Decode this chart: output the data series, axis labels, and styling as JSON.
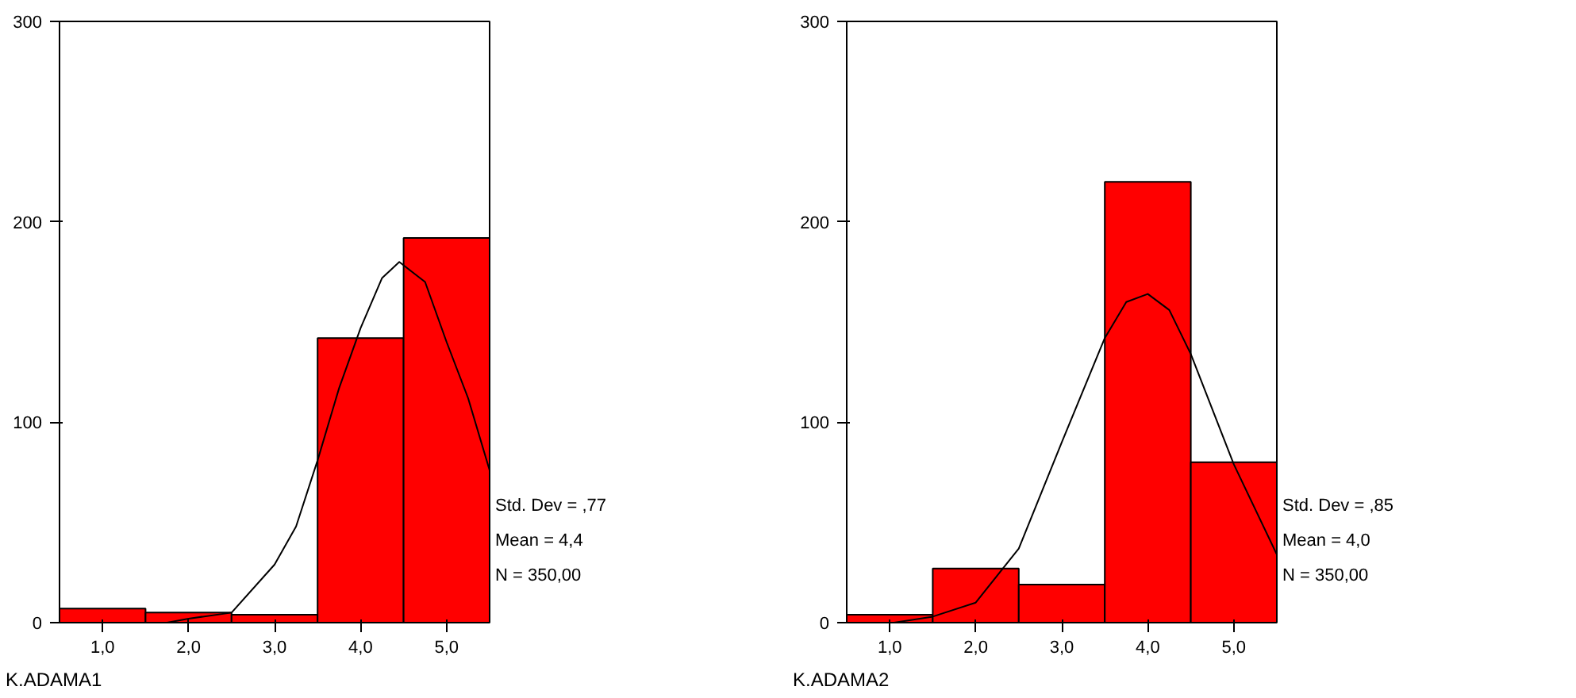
{
  "chart_data": [
    {
      "type": "histogram",
      "xlabel": "K.ADAMA1",
      "bins": [
        0.5,
        1.5,
        2.5,
        3.5,
        4.5,
        5.5
      ],
      "values": [
        7,
        5,
        4,
        142,
        192
      ],
      "color": "#ff0000",
      "series": [
        {
          "type": "line",
          "color": "#000000",
          "x": [
            1.75,
            2.0,
            2.5,
            3.0,
            3.25,
            3.5,
            3.75,
            4.0,
            4.25,
            4.45,
            4.75,
            5.0,
            5.25,
            5.5
          ],
          "values": [
            0,
            2,
            5,
            29,
            48,
            81,
            117,
            147,
            172,
            180,
            170,
            140,
            112,
            76
          ]
        }
      ],
      "xlim": [
        0.5,
        5.5
      ],
      "ylim": [
        0,
        300
      ],
      "xticks": [
        {
          "value": 1,
          "label": "1,0"
        },
        {
          "value": 2,
          "label": "2,0"
        },
        {
          "value": 3,
          "label": "3,0"
        },
        {
          "value": 4,
          "label": "4,0"
        },
        {
          "value": 5,
          "label": "5,0"
        }
      ],
      "yticks": [
        0,
        100,
        200,
        300
      ],
      "grid": false,
      "annotations": [
        "Std. Dev = ,77",
        "Mean = 4,4",
        "N = 350,00"
      ]
    },
    {
      "type": "histogram",
      "xlabel": "K.ADAMA2",
      "bins": [
        0.5,
        1.5,
        2.5,
        3.5,
        4.5,
        5.5
      ],
      "values": [
        4,
        27,
        19,
        220,
        80
      ],
      "color": "#ff0000",
      "series": [
        {
          "type": "line",
          "color": "#000000",
          "x": [
            1.05,
            1.5,
            2.0,
            2.5,
            3.0,
            3.5,
            3.75,
            4.0,
            4.25,
            4.5,
            5.0,
            5.5
          ],
          "values": [
            0,
            3,
            10,
            37,
            90,
            142,
            160,
            164,
            156,
            134,
            79,
            34
          ]
        }
      ],
      "xlim": [
        0.5,
        5.5
      ],
      "ylim": [
        0,
        300
      ],
      "xticks": [
        {
          "value": 1,
          "label": "1,0"
        },
        {
          "value": 2,
          "label": "2,0"
        },
        {
          "value": 3,
          "label": "3,0"
        },
        {
          "value": 4,
          "label": "4,0"
        },
        {
          "value": 5,
          "label": "5,0"
        }
      ],
      "yticks": [
        0,
        100,
        200,
        300
      ],
      "grid": false,
      "annotations": [
        "Std. Dev = ,85",
        "Mean = 4,0",
        "N = 350,00"
      ]
    }
  ]
}
